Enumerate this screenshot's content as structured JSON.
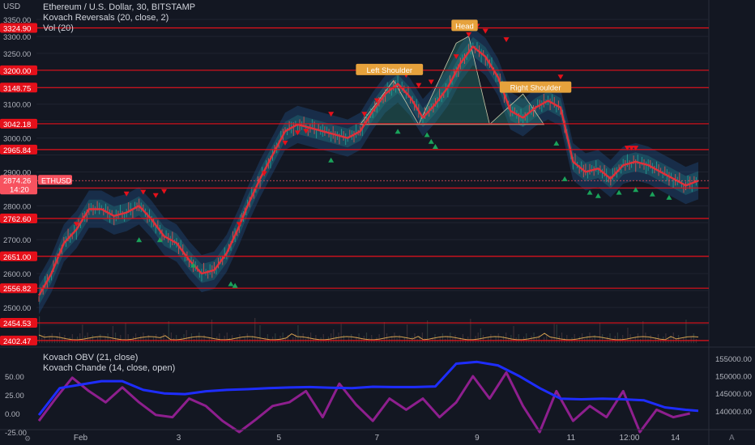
{
  "header": {
    "currency": "USD",
    "title": "Ethereum / U.S. Dollar, 30, BITSTAMP",
    "indicator1": "Kovach Reversals (20, close, 2)",
    "indicator2": "Vol (20)",
    "lower_indicator1": "Kovach OBV (21, close)",
    "lower_indicator2": "Kovach Chande (14, close, open)",
    "auto_label": "A"
  },
  "chart_data": [
    {
      "type": "candlestick",
      "title": "Ethereum / U.S. Dollar, 30, BITSTAMP",
      "ylim": [
        2380,
        3365
      ],
      "y_ticks": [
        2450,
        2500,
        2550,
        2600,
        2650,
        2700,
        2750,
        2800,
        2850,
        2900,
        2950,
        3000,
        3050,
        3100,
        3150,
        3200,
        3250,
        3300,
        3350
      ],
      "y_tick_labels": [
        "2450.00",
        "2500.00",
        "2550.00",
        "2600.00",
        "2650.00",
        "2700.00",
        "2750.00",
        "2800.00",
        "2850.00",
        "2900.00",
        "2950.00",
        "3000.00",
        "3050.00",
        "3100.00",
        "3150.00",
        "3200.00",
        "3250.00",
        "3300.00",
        "3350.00"
      ],
      "x_tick_labels": [
        "Feb",
        "3",
        "5",
        "7",
        "9",
        "11",
        "12:00",
        "14"
      ],
      "price_line": {
        "value": 2874.26,
        "label": "2874.26",
        "symbol": "ETHUSD",
        "countdown": "14:20",
        "color": "#f7525f"
      },
      "levels": [
        {
          "value": 3324.9,
          "label": "3324.90"
        },
        {
          "value": 3200.0,
          "label": "3200.00"
        },
        {
          "value": 3148.75,
          "label": "3148.75"
        },
        {
          "value": 3042.18,
          "label": "3042.18"
        },
        {
          "value": 2965.84,
          "label": "2965.84"
        },
        {
          "value": 2852.66,
          "label": "2852.66"
        },
        {
          "value": 2762.6,
          "label": "2762.60"
        },
        {
          "value": 2651.0,
          "label": "2651.00"
        },
        {
          "value": 2556.82,
          "label": "2556.82"
        },
        {
          "value": 2454.53,
          "label": "2454.53"
        },
        {
          "value": 2402.47,
          "label": "2402.47"
        }
      ],
      "price_path": {
        "x": [
          0.0,
          0.3,
          0.6,
          0.9,
          1.2,
          1.5,
          1.8,
          2.1,
          2.4,
          2.7,
          3.0,
          3.3,
          3.6,
          3.9,
          4.2,
          4.5,
          4.8,
          5.0,
          5.3,
          5.6,
          5.9,
          6.2,
          6.5,
          6.8,
          7.1,
          7.4,
          7.7,
          8.0,
          8.3,
          8.6,
          8.9,
          9.2,
          9.5,
          9.8,
          10.1,
          10.4,
          10.7,
          11.0,
          11.3,
          11.6,
          11.9,
          12.2,
          12.5,
          12.8,
          13.1,
          13.4,
          13.7,
          14.0,
          14.3,
          14.6,
          14.9,
          15.2,
          15.5,
          15.8
        ],
        "y": [
          2535,
          2600,
          2690,
          2730,
          2790,
          2790,
          2770,
          2780,
          2800,
          2760,
          2710,
          2690,
          2640,
          2600,
          2610,
          2660,
          2740,
          2800,
          2880,
          2950,
          3020,
          3040,
          3030,
          3020,
          3010,
          3000,
          3020,
          3080,
          3130,
          3160,
          3120,
          3060,
          3100,
          3150,
          3220,
          3270,
          3240,
          3180,
          3080,
          3060,
          3090,
          3110,
          3090,
          2930,
          2900,
          2910,
          2880,
          2920,
          2930,
          2920,
          2900,
          2880,
          2860,
          2874
        ]
      },
      "markers_down_count": 28,
      "markers_up_count": 24,
      "annotations": [
        {
          "text": "Left Shoulder",
          "x": 8.4,
          "y": 3200
        },
        {
          "text": "Head",
          "x": 10.2,
          "y": 3330
        },
        {
          "text": "Right Shoulder",
          "x": 11.9,
          "y": 3148
        }
      ]
    },
    {
      "type": "line",
      "title": "Kovach OBV (21, close) / Kovach Chande (14, close, open)",
      "left_axis": {
        "ylim": [
          -40,
          75
        ],
        "ticks": [
          50,
          25,
          0,
          -25
        ],
        "tick_labels": [
          "50.00",
          "25.00",
          "0.00",
          "-25.00"
        ]
      },
      "right_axis": {
        "ylim": [
          137500,
          157000
        ],
        "ticks": [
          155000,
          150000,
          145000,
          140000
        ],
        "tick_labels": [
          "155000.00",
          "150000.00",
          "145000.00",
          "140000.00"
        ]
      },
      "series": [
        {
          "color": "#1e2dff",
          "x": [
            0,
            0.5,
            1,
            1.5,
            2,
            2.5,
            3,
            3.5,
            4,
            4.5,
            5,
            5.5,
            6,
            6.5,
            7,
            7.5,
            8,
            8.5,
            9,
            9.5,
            10,
            10.5,
            11,
            11.5,
            12,
            12.5,
            13,
            13.5,
            14,
            14.5,
            15,
            15.5,
            15.8
          ],
          "y": [
            138800,
            146500,
            147500,
            148500,
            148500,
            146000,
            145000,
            144800,
            145600,
            146000,
            146200,
            146500,
            146700,
            146800,
            146600,
            146500,
            146900,
            146800,
            146800,
            147000,
            153500,
            154000,
            153000,
            150000,
            146500,
            143500,
            143300,
            143500,
            143300,
            143000,
            141000,
            140300,
            140000
          ]
        },
        {
          "color": "#8e1f8e",
          "x": [
            0,
            0.4,
            0.8,
            1.2,
            1.6,
            2.0,
            2.4,
            2.8,
            3.2,
            3.6,
            4.0,
            4.4,
            4.8,
            5.2,
            5.6,
            6.0,
            6.4,
            6.8,
            7.2,
            7.6,
            8.0,
            8.4,
            8.8,
            9.2,
            9.6,
            10.0,
            10.4,
            10.8,
            11.2,
            11.6,
            12.0,
            12.4,
            12.8,
            13.2,
            13.6,
            14.0,
            14.4,
            14.8,
            15.2,
            15.6
          ],
          "y": [
            -10,
            20,
            48,
            30,
            15,
            35,
            15,
            -2,
            -5,
            20,
            10,
            -10,
            -25,
            -8,
            10,
            15,
            30,
            -5,
            40,
            12,
            -10,
            20,
            5,
            20,
            -5,
            15,
            50,
            20,
            55,
            10,
            -25,
            30,
            -10,
            10,
            -5,
            30,
            -25,
            5,
            -5,
            0
          ]
        }
      ]
    }
  ]
}
